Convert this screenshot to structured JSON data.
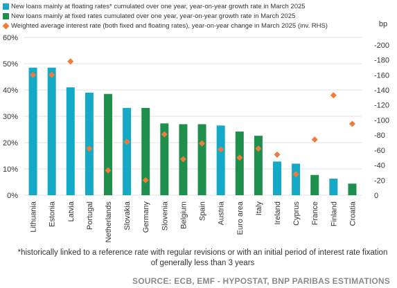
{
  "colors": {
    "floating": "#15a9c8",
    "fixed": "#1f8f4e",
    "rate": "#ee7d3d",
    "grid": "#d9d9d9"
  },
  "footnote": "*historically linked to a reference rate with regular revisions or with an  initial period of interest rate fixation of generally less than 3 years",
  "source": "SOURCE: ECB, EMF - HYPOSTAT, BNP PARIBAS ESTIMATIONS",
  "chart_data": {
    "type": "bar",
    "title": "",
    "categories": [
      "Lithuania",
      "Estonia",
      "Latvia",
      "Portugal",
      "Netherlands",
      "Slovakia",
      "Germany",
      "Slovenia",
      "Belgium",
      "Spain",
      "Austria",
      "Euro area",
      "Italy",
      "Ireland",
      "Cyprus",
      "France",
      "Finland",
      "Croatia"
    ],
    "bar_series_by_category": [
      "floating",
      "floating",
      "floating",
      "floating",
      "fixed",
      "floating",
      "fixed",
      "fixed",
      "fixed",
      "fixed",
      "floating",
      "fixed",
      "fixed",
      "floating",
      "floating",
      "fixed",
      "floating",
      "fixed"
    ],
    "series": [
      {
        "key": "floating",
        "name": "New loans mainly at floating rates* cumulated over one year, year-on-year growth rate in March 2025",
        "kind": "bar",
        "axis": "left"
      },
      {
        "key": "fixed",
        "name": "New loans mainly at fixed rates cumulated over one year, year-on-year growth rate in March 2025",
        "kind": "bar",
        "axis": "left"
      },
      {
        "key": "rate",
        "name": "Weighted average interest rate (both fixed and floating rates), year-on-year change in March 2025 (inv. RHS)",
        "kind": "marker",
        "axis": "right"
      }
    ],
    "bar_values": [
      48.5,
      48.5,
      41,
      39,
      38.5,
      33.2,
      33.2,
      27.3,
      27,
      27,
      26.5,
      24.2,
      22.6,
      12.8,
      12,
      7.7,
      6.3,
      4.4
    ],
    "rate_values": [
      -160,
      -160,
      -178,
      -62,
      -33,
      -71,
      -20,
      -81,
      -48,
      -69,
      -61,
      -50,
      -62,
      -54,
      -28,
      -74,
      -133,
      -95
    ],
    "y_left": {
      "min": 0,
      "max": 60,
      "ticks": [
        "0%",
        "10%",
        "20%",
        "30%",
        "40%",
        "50%",
        "60%"
      ]
    },
    "y_right": {
      "label": "bp",
      "min": -210,
      "max": 0,
      "inverted": true,
      "ticks": [
        "0",
        "-20",
        "-40",
        "-60",
        "-80",
        "-100",
        "-120",
        "-140",
        "-160",
        "-180",
        "-200"
      ]
    },
    "grid": true,
    "legend_position": "top-left"
  }
}
